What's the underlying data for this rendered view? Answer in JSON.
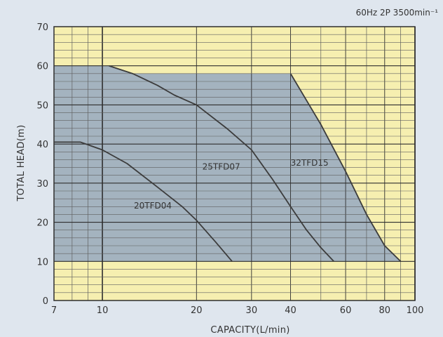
{
  "chart_data": {
    "type": "area",
    "title": "60Hz 2P 3500min⁻¹",
    "xlabel": "CAPACITY(L/min)",
    "ylabel": "TOTAL HEAD(m)",
    "x_scale": "log",
    "xlim": [
      7,
      100
    ],
    "ylim": [
      0,
      70
    ],
    "x_ticks": [
      7,
      10,
      20,
      30,
      40,
      60,
      80,
      100
    ],
    "y_ticks": [
      0,
      10,
      20,
      30,
      40,
      50,
      60,
      70
    ],
    "grid": true,
    "region": {
      "color": "#a4b3bf",
      "points": [
        [
          7,
          10
        ],
        [
          7,
          60
        ],
        [
          10.5,
          60
        ],
        [
          12.5,
          58
        ],
        [
          40,
          58
        ],
        [
          50,
          45
        ],
        [
          60,
          33
        ],
        [
          70,
          22
        ],
        [
          80,
          14
        ],
        [
          90,
          10
        ]
      ]
    },
    "series": [
      {
        "name": "20TFD04",
        "label_at": [
          14.5,
          23.5
        ],
        "points": [
          [
            7,
            40.5
          ],
          [
            8.5,
            40.5
          ],
          [
            10,
            38.5
          ],
          [
            12,
            35
          ],
          [
            15,
            29
          ],
          [
            18,
            24
          ],
          [
            20,
            20.5
          ],
          [
            23,
            15
          ],
          [
            26,
            10
          ]
        ]
      },
      {
        "name": "25TFD07",
        "label_at": [
          24,
          33.5
        ],
        "points": [
          [
            10.5,
            60
          ],
          [
            12.5,
            58
          ],
          [
            15,
            55
          ],
          [
            17,
            52.5
          ],
          [
            20,
            50
          ],
          [
            25,
            44
          ],
          [
            30,
            38.5
          ],
          [
            35,
            31
          ],
          [
            40,
            24
          ],
          [
            45,
            18
          ],
          [
            50,
            13.5
          ],
          [
            55,
            10
          ]
        ]
      },
      {
        "name": "32TFD15",
        "label_at": [
          46,
          34.5
        ],
        "points": [
          [
            40,
            58
          ],
          [
            50,
            45
          ],
          [
            60,
            33
          ],
          [
            70,
            22
          ],
          [
            80,
            14
          ],
          [
            90,
            10
          ]
        ]
      }
    ],
    "colors": {
      "plot_background": "#f6efb0",
      "major_grid": "#2e2e2e",
      "minor_grid": "#5f5f5f",
      "curve": "#3c3c3c"
    }
  }
}
